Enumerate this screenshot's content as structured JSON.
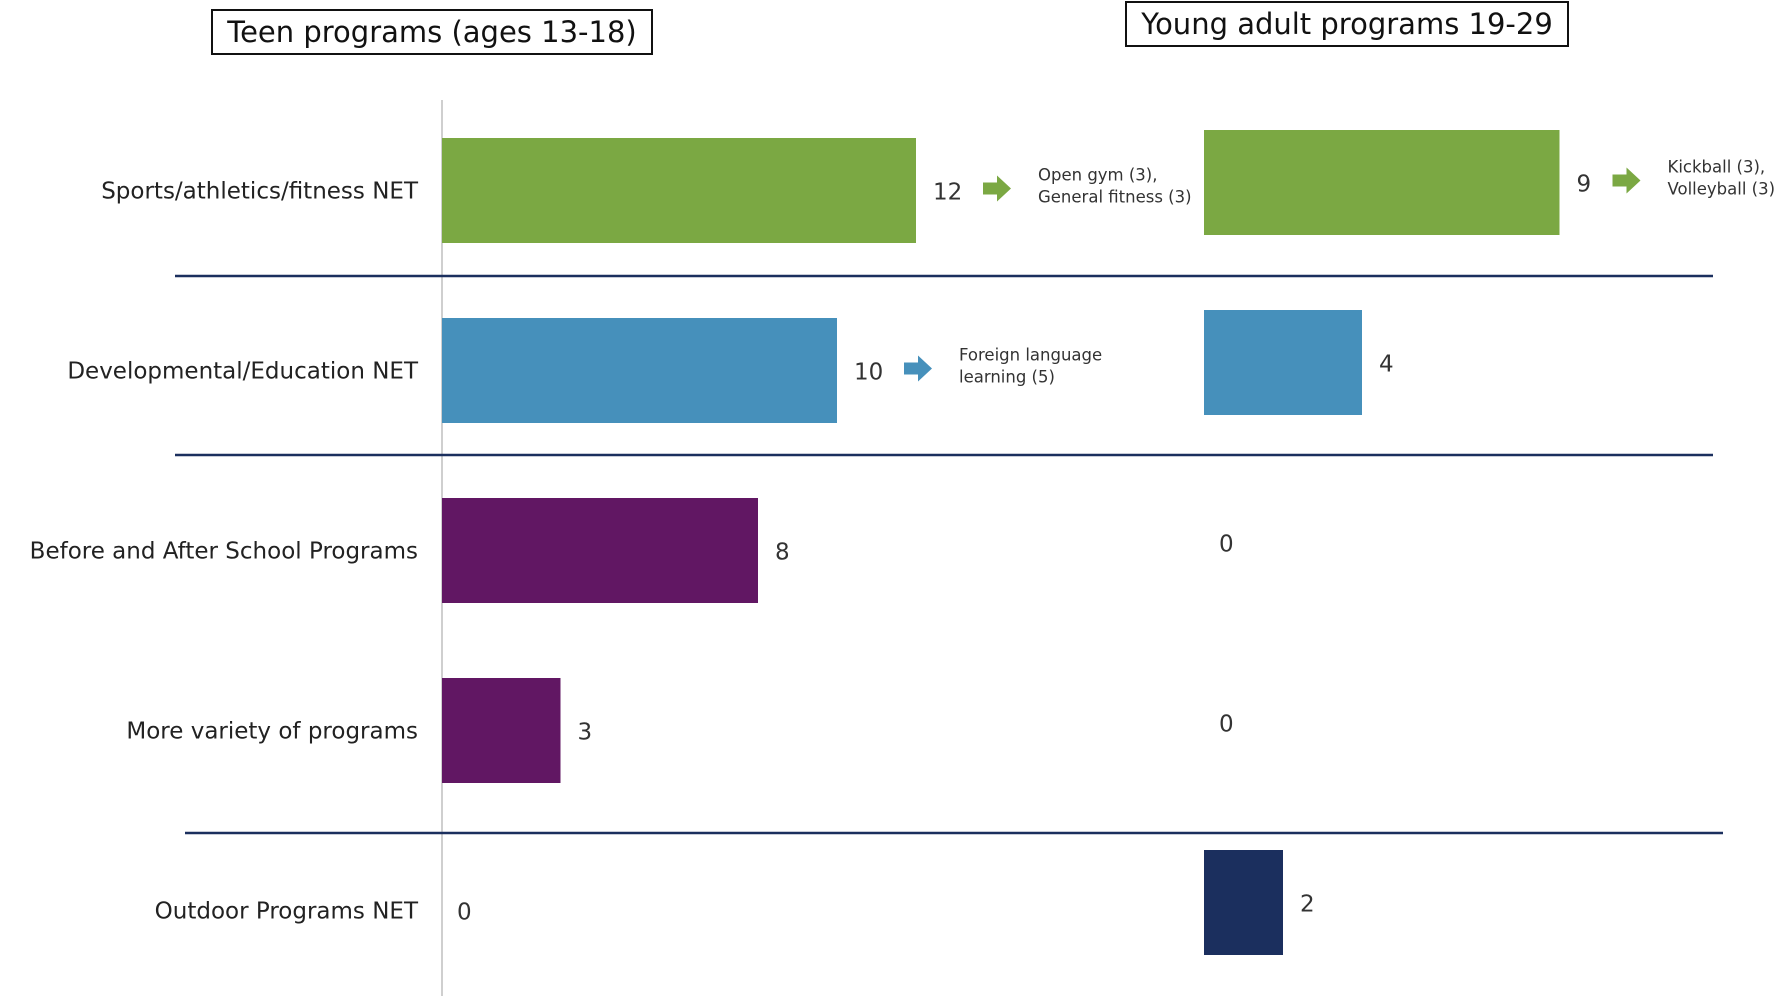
{
  "chart_data": {
    "type": "bar",
    "orientation": "horizontal",
    "categories": [
      "Sports/athletics/fitness NET",
      "Developmental/Education NET",
      "Before and After School Programs",
      "More variety of programs",
      "Outdoor Programs NET"
    ],
    "group_colors": [
      "#7BA843",
      "#4690BB",
      "#611763",
      "#611763",
      "#1B2F5E"
    ],
    "panels": [
      {
        "title": "Teen programs (ages 13-18)",
        "values": [
          12,
          10,
          8,
          3,
          0
        ],
        "notes": [
          "Open gym (3), | General fitness (3)",
          "Foreign language | learning (5)",
          "",
          "",
          ""
        ]
      },
      {
        "title": "Young adult programs 19-29",
        "values": [
          9,
          4,
          0,
          0,
          2
        ],
        "notes": [
          "Kickball (3), | Volleyball (3)",
          "",
          "",
          "",
          ""
        ]
      }
    ],
    "grid": false,
    "legend": "none"
  }
}
